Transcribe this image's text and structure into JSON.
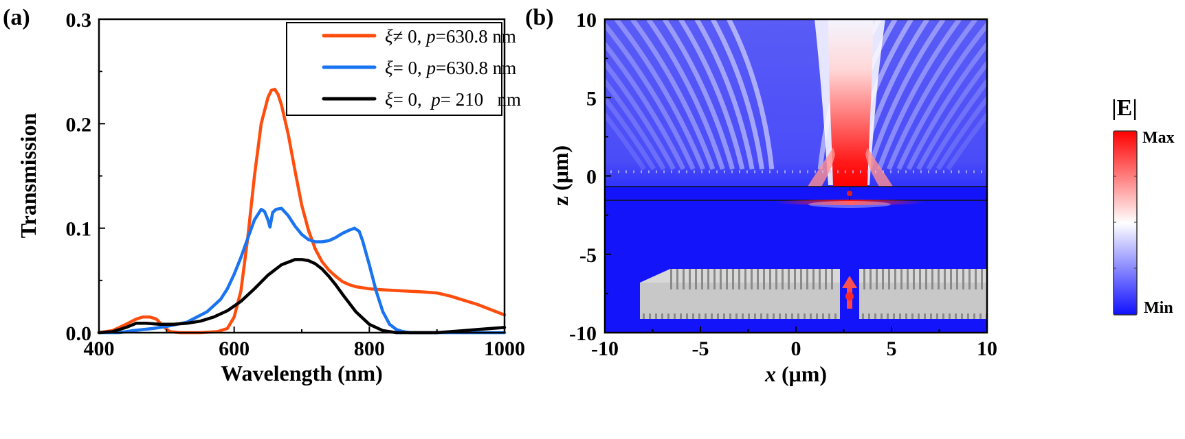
{
  "panel_labels": {
    "a": "(a)",
    "b": "(b)"
  },
  "colors": {
    "orange": "#ff4d0d",
    "blue": "#1a73f0",
    "black": "#000000",
    "field_min": "#1010ff",
    "field_mid": "#ffffff",
    "field_max": "#ff0000",
    "device_gray": "#c8c8c8"
  },
  "chart_data": [
    {
      "id": "a",
      "type": "line",
      "title": "",
      "xlabel": "Wavelength (nm)",
      "ylabel": "Transmission",
      "xlim": [
        400,
        1000
      ],
      "ylim": [
        0,
        0.3
      ],
      "xticks": [
        400,
        600,
        800,
        1000
      ],
      "xtick_labels": [
        "400",
        "600",
        "800",
        "1000"
      ],
      "yticks": [
        0.0,
        0.1,
        0.2,
        0.3
      ],
      "ytick_labels": [
        "0.0",
        "0.1",
        "0.2",
        "0.3"
      ],
      "grid": false,
      "legend_position": "top-right",
      "series": [
        {
          "name": "ξ≠ 0,  p=630.8 nm",
          "legend_parts": {
            "sym": "ξ",
            "rel": "≠ 0,  ",
            "p": "p",
            "val": "=630.8 nm"
          },
          "color": "#ff4d0d",
          "x": [
            400,
            420,
            440,
            455,
            465,
            475,
            485,
            495,
            505,
            520,
            550,
            575,
            590,
            600,
            610,
            620,
            630,
            640,
            650,
            655,
            660,
            665,
            670,
            680,
            690,
            700,
            710,
            720,
            730,
            740,
            750,
            760,
            770,
            780,
            790,
            800,
            820,
            850,
            880,
            900,
            920,
            940,
            960,
            980,
            1000
          ],
          "y": [
            0.0,
            0.002,
            0.008,
            0.013,
            0.015,
            0.015,
            0.013,
            0.006,
            0.001,
            0.0,
            0.0,
            0.001,
            0.004,
            0.015,
            0.04,
            0.09,
            0.15,
            0.2,
            0.225,
            0.232,
            0.233,
            0.228,
            0.218,
            0.19,
            0.155,
            0.122,
            0.098,
            0.08,
            0.068,
            0.06,
            0.054,
            0.049,
            0.046,
            0.044,
            0.043,
            0.042,
            0.041,
            0.04,
            0.039,
            0.038,
            0.035,
            0.031,
            0.027,
            0.022,
            0.017
          ]
        },
        {
          "name": "ξ= 0,  p=630.8 nm",
          "legend_parts": {
            "sym": "ξ",
            "rel": "= 0,  ",
            "p": "p",
            "val": "=630.8 nm"
          },
          "color": "#1a73f0",
          "x": [
            400,
            430,
            450,
            480,
            500,
            530,
            560,
            580,
            590,
            600,
            610,
            620,
            630,
            640,
            645,
            650,
            653,
            657,
            662,
            670,
            680,
            690,
            700,
            710,
            720,
            730,
            740,
            750,
            760,
            770,
            778,
            785,
            790,
            800,
            810,
            820,
            830,
            840,
            850,
            860,
            1000
          ],
          "y": [
            0.0,
            0.0,
            0.002,
            0.004,
            0.006,
            0.01,
            0.02,
            0.032,
            0.042,
            0.056,
            0.072,
            0.09,
            0.108,
            0.118,
            0.116,
            0.108,
            0.101,
            0.115,
            0.118,
            0.119,
            0.112,
            0.102,
            0.094,
            0.089,
            0.087,
            0.087,
            0.088,
            0.091,
            0.095,
            0.098,
            0.1,
            0.097,
            0.088,
            0.065,
            0.04,
            0.02,
            0.008,
            0.003,
            0.001,
            0.0,
            0.0
          ]
        },
        {
          "name": "ξ= 0,  p= 210   nm",
          "legend_parts": {
            "sym": "ξ",
            "rel": "= 0,  ",
            "p": "p",
            "val": "= 210   nm"
          },
          "color": "#000000",
          "x": [
            400,
            420,
            440,
            455,
            470,
            490,
            510,
            530,
            550,
            570,
            590,
            610,
            630,
            650,
            670,
            690,
            700,
            710,
            720,
            730,
            740,
            750,
            760,
            780,
            800,
            820,
            840,
            860,
            880,
            900,
            920,
            940,
            960,
            980,
            1000
          ],
          "y": [
            0.0,
            0.001,
            0.005,
            0.009,
            0.009,
            0.008,
            0.008,
            0.009,
            0.011,
            0.015,
            0.021,
            0.03,
            0.042,
            0.055,
            0.065,
            0.07,
            0.07,
            0.069,
            0.066,
            0.061,
            0.054,
            0.046,
            0.037,
            0.02,
            0.008,
            0.002,
            0.0,
            0.0,
            0.0,
            0.0,
            0.001,
            0.002,
            0.003,
            0.004,
            0.005
          ]
        }
      ]
    },
    {
      "id": "b",
      "type": "heatmap",
      "title": "",
      "xlabel": "x (μm)",
      "xlabel_parts": {
        "var": "x",
        "unit": " (μm)"
      },
      "ylabel": "z (μm)",
      "xlim": [
        -10,
        10
      ],
      "ylim": [
        -10,
        10
      ],
      "xticks": [
        -10,
        -5,
        0,
        5,
        10
      ],
      "xtick_labels": [
        "-10",
        "-5",
        "0",
        "5",
        "10"
      ],
      "yticks": [
        -10,
        -5,
        0,
        5,
        10
      ],
      "ytick_labels": [
        "-10",
        "-5",
        "0",
        "5",
        "10"
      ],
      "grid": false,
      "colorbar": {
        "title": "|E|",
        "max_label": "Max",
        "min_label": "Min",
        "position": "right"
      },
      "interfaces_z": [
        0.4,
        -0.4
      ],
      "beam_center_x": 0,
      "inset": {
        "description": "3D grating device with central slit and red dipole source",
        "slit_x": 0
      }
    }
  ]
}
